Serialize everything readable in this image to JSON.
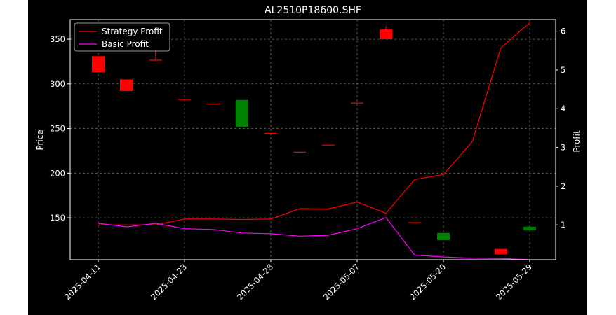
{
  "chart_data": {
    "type": "candlestick-line",
    "title": "AL2510P18600.SHF",
    "xlabel": "",
    "ylabel_left": "Price",
    "ylabel_right": "Profit",
    "ylim_left": [
      103,
      372
    ],
    "ylim_right": [
      0.1,
      6.3
    ],
    "yticks_left": [
      150,
      200,
      250,
      300,
      350
    ],
    "yticks_right": [
      1,
      2,
      3,
      4,
      5,
      6
    ],
    "x_tick_labels": [
      {
        "index": 0,
        "label": "2025-04-11"
      },
      {
        "index": 2,
        "label": "2025-04-23"
      },
      {
        "index": 4,
        "label": "2025-04-28"
      },
      {
        "index": 6,
        "label": "2025-05-07"
      },
      {
        "index": 8,
        "label": "2025-05-20"
      },
      {
        "index": 10,
        "label": "2025-05-29"
      }
    ],
    "grid": true,
    "legend_position": "top-left",
    "colors": {
      "up": "#ff0000",
      "down": "#008000",
      "strategy": "#ff0000",
      "basic": "#ff00ff",
      "background": "#000000",
      "foreground": "#ffffff"
    },
    "candles": [
      {
        "i": 0.0,
        "open": 313,
        "close": 331,
        "high": 331,
        "low": 313
      },
      {
        "i": 0.65,
        "open": 292,
        "close": 305,
        "high": 305,
        "low": 292
      },
      {
        "i": 1.33,
        "open": 327,
        "close": 327,
        "high": 338,
        "low": 327
      },
      {
        "i": 2.0,
        "open": 283,
        "close": 283,
        "high": 283,
        "low": 283
      },
      {
        "i": 2.67,
        "open": 278,
        "close": 278,
        "high": 278,
        "low": 278
      },
      {
        "i": 3.33,
        "open": 282,
        "close": 252,
        "high": 282,
        "low": 252
      },
      {
        "i": 4.0,
        "open": 245,
        "close": 245,
        "high": 245,
        "low": 245
      },
      {
        "i": 4.67,
        "open": 224,
        "close": 224,
        "high": 224,
        "low": 224
      },
      {
        "i": 5.33,
        "open": 232,
        "close": 232,
        "high": 232,
        "low": 232
      },
      {
        "i": 6.0,
        "open": 279,
        "close": 279,
        "high": 279,
        "low": 279
      },
      {
        "i": 6.67,
        "open": 350,
        "close": 361,
        "high": 365,
        "low": 350
      },
      {
        "i": 7.33,
        "open": 145,
        "close": 145,
        "high": 145,
        "low": 145
      },
      {
        "i": 8.0,
        "open": 133,
        "close": 125,
        "high": 133,
        "low": 125
      },
      {
        "i": 9.33,
        "open": 109,
        "close": 115,
        "high": 115,
        "low": 109
      },
      {
        "i": 10.0,
        "open": 140,
        "close": 136,
        "high": 140,
        "low": 136
      }
    ],
    "series": [
      {
        "name": "Strategy Profit",
        "axis": "right",
        "color": "#ff0000",
        "points": [
          [
            0.0,
            1.0
          ],
          [
            0.67,
            1.0
          ],
          [
            1.33,
            1.0
          ],
          [
            2.0,
            1.15
          ],
          [
            2.67,
            1.15
          ],
          [
            3.33,
            1.14
          ],
          [
            4.0,
            1.15
          ],
          [
            4.67,
            1.42
          ],
          [
            5.33,
            1.41
          ],
          [
            6.0,
            1.59
          ],
          [
            6.67,
            1.3
          ],
          [
            7.33,
            2.17
          ],
          [
            8.0,
            2.3
          ],
          [
            8.67,
            3.15
          ],
          [
            9.33,
            5.57
          ],
          [
            10.0,
            6.22
          ]
        ]
      },
      {
        "name": "Basic Profit",
        "axis": "right",
        "color": "#ff00ff",
        "points": [
          [
            0.0,
            1.04
          ],
          [
            0.67,
            0.95
          ],
          [
            1.33,
            1.04
          ],
          [
            2.0,
            0.9
          ],
          [
            2.67,
            0.88
          ],
          [
            3.33,
            0.79
          ],
          [
            4.0,
            0.77
          ],
          [
            4.67,
            0.71
          ],
          [
            5.33,
            0.73
          ],
          [
            6.0,
            0.9
          ],
          [
            6.67,
            1.19
          ],
          [
            7.33,
            0.22
          ],
          [
            8.0,
            0.17
          ],
          [
            8.67,
            0.14
          ],
          [
            9.33,
            0.13
          ],
          [
            10.0,
            0.1
          ]
        ]
      }
    ]
  }
}
